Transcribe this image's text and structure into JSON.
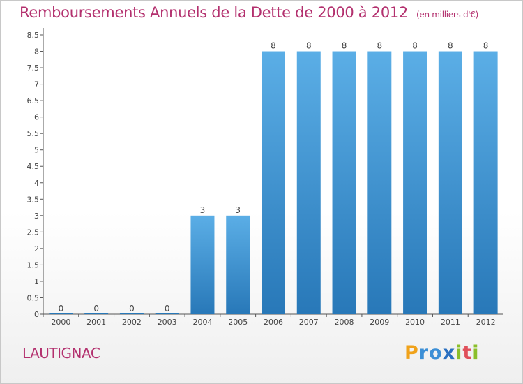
{
  "title": "Remboursements Annuels de la Dette de 2000 à 2012",
  "subtitle": "(en milliers d'€)",
  "commune": "LAUTIGNAC",
  "logo": {
    "p": "P",
    "r": "r",
    "o": "o",
    "x": "x",
    "i1": "i",
    "t": "t",
    "i2": "i"
  },
  "colors": {
    "title": "#b3306e",
    "bar_light": "#5baee6",
    "bar_dark": "#2878b8"
  },
  "chart_data": {
    "type": "bar",
    "title": "Remboursements Annuels de la Dette de 2000 à 2012",
    "subtitle": "(en milliers d'€)",
    "categories": [
      "2000",
      "2001",
      "2002",
      "2003",
      "2004",
      "2005",
      "2006",
      "2007",
      "2008",
      "2009",
      "2010",
      "2011",
      "2012"
    ],
    "values": [
      0,
      0,
      0,
      0,
      3,
      3,
      8,
      8,
      8,
      8,
      8,
      8,
      8
    ],
    "value_labels": [
      "0",
      "0",
      "0",
      "0",
      "3",
      "3",
      "8",
      "8",
      "8",
      "8",
      "8",
      "8",
      "8"
    ],
    "y_ticks": [
      "0",
      "0.5",
      "1",
      "1.5",
      "2",
      "2.5",
      "3",
      "3.5",
      "4",
      "4.5",
      "5",
      "5.5",
      "6",
      "6.5",
      "7",
      "7.5",
      "8",
      "8.5"
    ],
    "ylim": [
      0,
      8.5
    ],
    "grid": false,
    "xlabel": "",
    "ylabel": ""
  }
}
